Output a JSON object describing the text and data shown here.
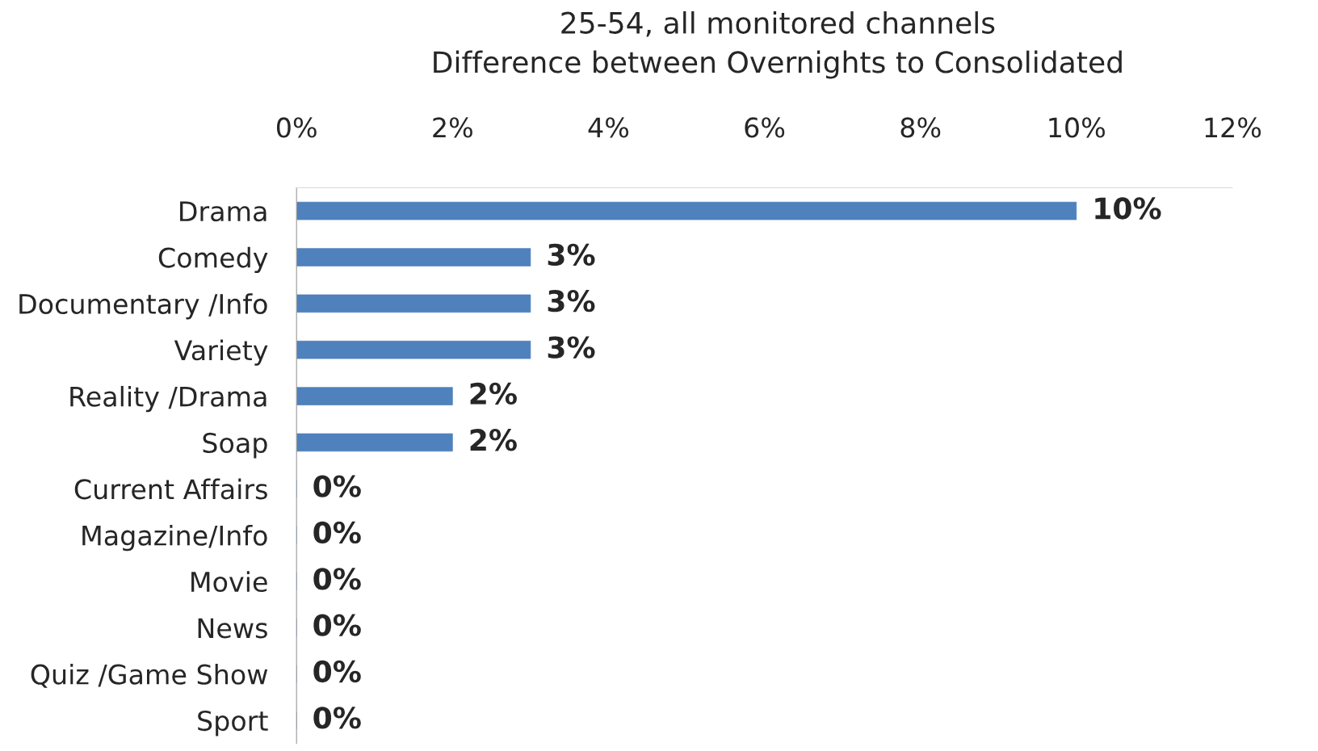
{
  "chart_data": {
    "type": "bar",
    "orientation": "horizontal",
    "title": "25-54, all monitored channels\nDifference between Overnights to Consolidated",
    "categories": [
      "Drama",
      "Comedy",
      "Documentary /Info",
      "Variety",
      "Reality /Drama",
      "Soap",
      "Current Affairs",
      "Magazine/Info",
      "Movie",
      "News",
      "Quiz /Game Show",
      "Sport"
    ],
    "values": [
      10,
      3,
      3,
      3,
      2,
      2,
      0,
      0,
      0,
      0,
      0,
      0
    ],
    "value_labels": [
      "10%",
      "3%",
      "3%",
      "3%",
      "2%",
      "2%",
      "0%",
      "0%",
      "0%",
      "0%",
      "0%",
      "0%"
    ],
    "color": "#4f81bd",
    "xlim": [
      0,
      12
    ],
    "xticks": [
      {
        "value": 0,
        "label": "0%"
      },
      {
        "value": 2,
        "label": "2%"
      },
      {
        "value": 4,
        "label": "4%"
      },
      {
        "value": 6,
        "label": "6%"
      },
      {
        "value": 8,
        "label": "8%"
      },
      {
        "value": 10,
        "label": "10%"
      },
      {
        "value": 12,
        "label": "12%"
      }
    ],
    "grid": false,
    "legend": false
  }
}
